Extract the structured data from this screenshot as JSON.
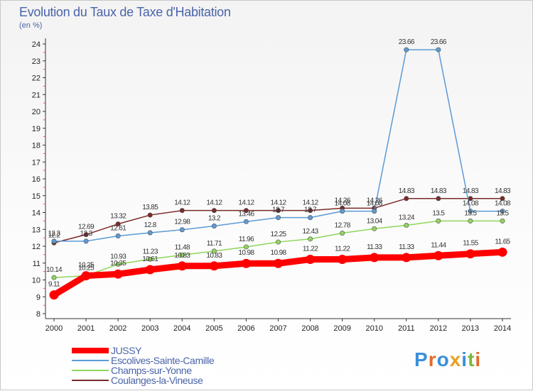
{
  "chart": {
    "title": "Evolution du Taux de Taxe d'Habitation",
    "subtitle": "(en %)"
  },
  "logo": {
    "letters": [
      "P",
      "r",
      "o",
      "x",
      "i",
      "t",
      "i"
    ],
    "colors": [
      "#3b8fd8",
      "#e36b2a",
      "#3b8fd8",
      "#e8a020",
      "#3b8fd8",
      "#7cb83a",
      "#e36b2a"
    ]
  },
  "chart_data": {
    "type": "line",
    "title": "Evolution du Taux de Taxe d'Habitation",
    "ylabel": "(en %)",
    "xlabel": "",
    "x": [
      "2000",
      "2001",
      "2002",
      "2003",
      "2004",
      "2005",
      "2006",
      "2007",
      "2008",
      "2009",
      "2010",
      "2011",
      "2012",
      "2013",
      "2014"
    ],
    "ylim": [
      8,
      24
    ],
    "yticks": [
      8,
      9,
      10,
      11,
      12,
      13,
      14,
      15,
      16,
      17,
      18,
      19,
      20,
      21,
      22,
      23,
      24
    ],
    "grid": false,
    "legend": "bottom-left",
    "series": [
      {
        "name": "Coulanges-la-Vineuse",
        "color": "#7a2a2a",
        "values": [
          12.2,
          12.69,
          13.32,
          13.85,
          14.12,
          14.12,
          14.12,
          14.12,
          14.12,
          14.26,
          14.26,
          14.83,
          14.83,
          14.83,
          14.83
        ],
        "labels": [
          "12.2",
          "12.69",
          "13.32",
          "13.85",
          "14.12",
          "14.12",
          "14.12",
          "14.12",
          "14.12",
          "14.26",
          "14.26",
          "14.83",
          "14.83",
          "14.83",
          "14.83"
        ]
      },
      {
        "name": "Escolives-Sainte-Camille",
        "color": "#5b9bd5",
        "values": [
          12.3,
          12.3,
          12.61,
          12.8,
          12.98,
          13.2,
          13.46,
          13.7,
          13.7,
          14.08,
          14.08,
          23.66,
          23.66,
          14.08,
          14.08
        ],
        "labels": [
          "12.3",
          "12.3",
          "12.61",
          "12.8",
          "12.98",
          "13.2",
          "13.46",
          "13.7",
          "13.7",
          "14.08",
          "14.08",
          "23.66",
          "23.66",
          "14.08",
          "14.08"
        ]
      },
      {
        "name": "Champs-sur-Yonne",
        "color": "#8ed65a",
        "values": [
          10.14,
          10.25,
          10.93,
          11.23,
          11.48,
          11.71,
          11.96,
          12.25,
          12.43,
          12.78,
          13.04,
          13.24,
          13.5,
          13.5,
          13.5
        ],
        "labels": [
          "10.14",
          "10.25",
          "10.93",
          "11.23",
          "11.48",
          "11.71",
          "11.96",
          "12.25",
          "12.43",
          "12.78",
          "13.04",
          "13.24",
          "13.5",
          "13.5",
          "13.5"
        ]
      },
      {
        "name": "JUSSY",
        "color": "#ff0000",
        "values": [
          9.11,
          10.25,
          10.35,
          10.61,
          10.83,
          10.83,
          10.98,
          10.98,
          11.22,
          11.22,
          11.33,
          11.33,
          11.44,
          11.55,
          11.65
        ],
        "labels": [
          "9.11",
          "10.25",
          "10.35",
          "10.61",
          "10.83",
          "10.83",
          "10.98",
          "10.98",
          "11.22",
          "11.22",
          "11.33",
          "11.33",
          "11.44",
          "11.55",
          "11.65"
        ]
      }
    ],
    "legend_entries": [
      {
        "name": "JUSSY",
        "color": "#ff0000"
      },
      {
        "name": "Escolives-Sainte-Camille",
        "color": "#5b9bd5"
      },
      {
        "name": "Champs-sur-Yonne",
        "color": "#8ed65a"
      },
      {
        "name": "Coulanges-la-Vineuse",
        "color": "#7a2a2a"
      }
    ]
  }
}
